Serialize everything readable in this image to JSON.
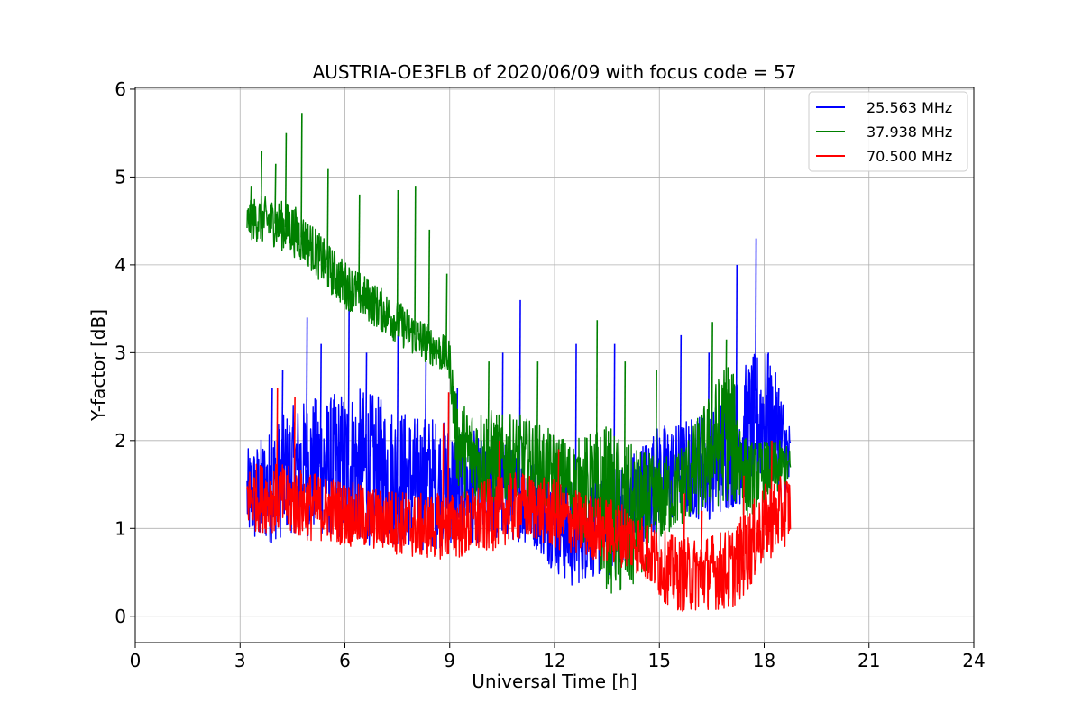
{
  "chart_data": {
    "type": "line",
    "title": "AUSTRIA-OE3FLB of 2020/06/09 with focus code = 57",
    "xlabel": "Universal Time [h]",
    "ylabel": "Y-factor [dB]",
    "xlim": [
      0,
      24
    ],
    "ylim": [
      -0.3,
      6.02
    ],
    "xticks": [
      "0",
      "3",
      "6",
      "9",
      "12",
      "15",
      "18",
      "21",
      "24"
    ],
    "yticks": [
      "0",
      "1",
      "2",
      "3",
      "4",
      "5",
      "6"
    ],
    "grid": true,
    "legend_position": "top-right",
    "series": [
      {
        "name": "25.563 MHz",
        "color": "#0000ff",
        "x": [
          3.2,
          3.5,
          4.0,
          4.5,
          5.0,
          5.5,
          6.0,
          6.5,
          7.0,
          7.5,
          8.0,
          8.5,
          9.0,
          9.5,
          10.0,
          10.5,
          11.0,
          11.5,
          12.0,
          12.5,
          13.0,
          13.5,
          14.0,
          14.5,
          15.0,
          15.5,
          16.0,
          16.5,
          17.0,
          17.5,
          18.0,
          18.5,
          18.75
        ],
        "low": [
          0.85,
          0.75,
          0.85,
          0.95,
          0.9,
          0.9,
          0.85,
          0.8,
          0.8,
          0.8,
          0.75,
          0.75,
          0.8,
          0.85,
          0.8,
          0.85,
          0.85,
          0.75,
          0.5,
          0.3,
          0.45,
          0.4,
          0.6,
          0.8,
          1.0,
          1.1,
          1.1,
          1.1,
          1.2,
          1.3,
          1.5,
          1.4,
          1.2
        ],
        "high": [
          1.9,
          2.0,
          2.2,
          2.4,
          2.5,
          2.5,
          2.6,
          2.6,
          2.5,
          2.4,
          2.3,
          2.3,
          2.2,
          2.2,
          2.0,
          2.0,
          1.9,
          1.8,
          1.7,
          1.6,
          1.6,
          1.6,
          1.8,
          2.0,
          2.2,
          2.2,
          2.3,
          2.4,
          2.6,
          2.9,
          3.1,
          2.6,
          2.2
        ],
        "spikes": [
          [
            3.9,
            2.6
          ],
          [
            4.2,
            2.8
          ],
          [
            4.9,
            3.4
          ],
          [
            5.3,
            3.1
          ],
          [
            6.1,
            3.5
          ],
          [
            6.6,
            3.0
          ],
          [
            7.5,
            3.2
          ],
          [
            8.3,
            2.9
          ],
          [
            9.2,
            2.6
          ],
          [
            10.5,
            3.0
          ],
          [
            11.0,
            3.6
          ],
          [
            12.6,
            3.1
          ],
          [
            13.7,
            3.1
          ],
          [
            15.6,
            3.2
          ],
          [
            16.4,
            3.0
          ],
          [
            17.2,
            4.0
          ],
          [
            17.75,
            4.3
          ],
          [
            18.1,
            3.0
          ],
          [
            18.4,
            2.6
          ]
        ]
      },
      {
        "name": "37.938 MHz",
        "color": "#008000",
        "x": [
          3.2,
          3.5,
          4.0,
          4.5,
          5.0,
          5.5,
          6.0,
          6.5,
          7.0,
          7.5,
          8.0,
          8.5,
          9.0,
          9.2,
          9.5,
          10.0,
          10.5,
          11.0,
          11.5,
          12.0,
          12.5,
          13.0,
          13.5,
          14.0,
          14.5,
          15.0,
          15.5,
          16.0,
          16.5,
          17.0,
          17.5,
          18.0,
          18.5,
          18.75
        ],
        "low": [
          4.3,
          4.25,
          4.2,
          4.1,
          3.95,
          3.7,
          3.5,
          3.4,
          3.25,
          3.1,
          2.95,
          2.85,
          2.7,
          1.5,
          1.3,
          1.2,
          1.2,
          1.3,
          1.2,
          1.1,
          1.0,
          0.7,
          0.3,
          0.1,
          0.4,
          0.8,
          1.0,
          1.1,
          1.2,
          1.3,
          1.1,
          1.3,
          1.4,
          1.5
        ],
        "high": [
          4.7,
          4.8,
          4.75,
          4.7,
          4.5,
          4.25,
          4.05,
          3.9,
          3.75,
          3.6,
          3.45,
          3.3,
          3.15,
          2.5,
          2.4,
          2.4,
          2.3,
          2.3,
          2.2,
          2.1,
          2.0,
          2.1,
          2.2,
          2.0,
          1.9,
          1.8,
          1.9,
          2.2,
          2.6,
          3.0,
          2.0,
          2.0,
          2.0,
          1.9
        ],
        "spikes": [
          [
            3.3,
            4.9
          ],
          [
            3.6,
            5.3
          ],
          [
            4.0,
            5.15
          ],
          [
            4.3,
            5.5
          ],
          [
            4.75,
            5.73
          ],
          [
            5.5,
            5.1
          ],
          [
            6.4,
            4.8
          ],
          [
            7.5,
            4.85
          ],
          [
            8.0,
            4.9
          ],
          [
            8.4,
            4.4
          ],
          [
            8.9,
            3.9
          ],
          [
            10.1,
            2.9
          ],
          [
            11.5,
            2.9
          ],
          [
            13.2,
            3.37
          ],
          [
            14.0,
            2.9
          ],
          [
            14.9,
            2.8
          ],
          [
            16.5,
            3.35
          ],
          [
            16.9,
            3.15
          ]
        ]
      },
      {
        "name": "70.500 MHz",
        "color": "#ff0000",
        "x": [
          3.2,
          3.5,
          4.0,
          4.5,
          5.0,
          5.5,
          6.0,
          6.5,
          7.0,
          7.5,
          8.0,
          8.5,
          9.0,
          9.5,
          10.0,
          10.5,
          11.0,
          11.5,
          12.0,
          12.5,
          13.0,
          13.5,
          14.0,
          14.5,
          15.0,
          15.5,
          16.0,
          16.5,
          17.0,
          17.5,
          18.0,
          18.5,
          18.75
        ],
        "low": [
          1.0,
          0.95,
          0.95,
          0.9,
          0.85,
          0.85,
          0.8,
          0.75,
          0.75,
          0.7,
          0.65,
          0.65,
          0.65,
          0.65,
          0.7,
          0.8,
          0.85,
          0.85,
          0.75,
          0.7,
          0.65,
          0.6,
          0.55,
          0.45,
          0.2,
          0.05,
          0.05,
          0.08,
          0.05,
          0.25,
          0.6,
          0.75,
          0.85
        ],
        "high": [
          1.7,
          1.75,
          1.75,
          1.7,
          1.65,
          1.6,
          1.55,
          1.5,
          1.45,
          1.45,
          1.4,
          1.4,
          1.4,
          1.45,
          1.55,
          1.6,
          1.65,
          1.6,
          1.55,
          1.45,
          1.4,
          1.35,
          1.3,
          1.15,
          1.0,
          0.9,
          0.9,
          0.95,
          1.0,
          1.2,
          1.5,
          1.6,
          1.65
        ],
        "spikes": [
          [
            4.05,
            2.6
          ],
          [
            4.55,
            2.5
          ],
          [
            8.8,
            2.2
          ],
          [
            8.95,
            2.55
          ],
          [
            10.4,
            2.0
          ],
          [
            12.1,
            1.9
          ],
          [
            15.7,
            1.4
          ],
          [
            16.2,
            1.2
          ],
          [
            17.4,
            1.6
          ],
          [
            18.2,
            2.0
          ]
        ]
      }
    ]
  }
}
